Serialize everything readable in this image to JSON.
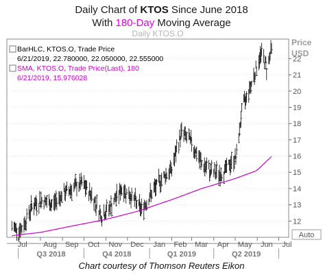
{
  "title": {
    "line1_prefix": "Daily Chart of ",
    "line1_ticker": "KTOS",
    "line1_suffix": " Since June 2018",
    "line2_prefix": "With ",
    "line2_highlight": "180-Day",
    "line2_suffix": " Moving Average"
  },
  "watermark": "Daily KTOS.O",
  "legend": [
    {
      "line1": "BarHLC, KTOS.O, Trade Price",
      "line2": "6/21/2019, 22.780000, 22.050000, 22.555000",
      "color": "#000000"
    },
    {
      "line1": "SMA, KTOS.O, Trade Price(Last),  180",
      "line2": "6/21/2019, 15.976028",
      "color": "#cc00cc"
    }
  ],
  "axis_title": {
    "line1": "Price",
    "line2": "USD"
  },
  "auto_label": "Auto",
  "credit": "Chart courtesy of Thomson Reuters Eikon",
  "colors": {
    "bars": "#000000",
    "sma": "#cc00cc",
    "accent": "#e800e8",
    "grid": "#cfcfcf",
    "axis_text": "#555555"
  },
  "chart_data": {
    "type": "line",
    "y_ticks": [
      "12",
      "13",
      "14",
      "15",
      "16",
      "17",
      "18",
      "19",
      "20",
      "21",
      "22"
    ],
    "ylim": [
      11.0,
      23.2
    ],
    "month_labels": [
      "Jul",
      "Aug",
      "Sep",
      "Oct",
      "Nov",
      "Dec",
      "Jan",
      "Feb",
      "Mar",
      "Apr",
      "May",
      "Jun",
      "Jul"
    ],
    "quarter_labels": [
      "Q3 2018",
      "Q4 2018",
      "Q1 2019",
      "Q2 2019"
    ],
    "series": [
      {
        "name": "BarHLC, KTOS.O, Trade Price",
        "kind": "price",
        "points": [
          [
            "2018-06-22",
            11.6
          ],
          [
            "2018-07-06",
            11.5
          ],
          [
            "2018-07-20",
            12.9
          ],
          [
            "2018-08-03",
            13.3
          ],
          [
            "2018-08-17",
            13.0
          ],
          [
            "2018-08-31",
            13.6
          ],
          [
            "2018-09-14",
            14.0
          ],
          [
            "2018-09-28",
            14.3
          ],
          [
            "2018-10-12",
            13.6
          ],
          [
            "2018-10-26",
            12.3
          ],
          [
            "2018-11-09",
            13.0
          ],
          [
            "2018-11-23",
            14.0
          ],
          [
            "2018-12-07",
            13.5
          ],
          [
            "2018-12-21",
            12.7
          ],
          [
            "2019-01-04",
            13.7
          ],
          [
            "2019-01-18",
            14.6
          ],
          [
            "2019-02-01",
            15.2
          ],
          [
            "2019-02-15",
            17.5
          ],
          [
            "2019-03-01",
            16.8
          ],
          [
            "2019-03-15",
            15.5
          ],
          [
            "2019-03-29",
            15.0
          ],
          [
            "2019-04-12",
            14.9
          ],
          [
            "2019-04-26",
            15.6
          ],
          [
            "2019-05-03",
            16.0
          ],
          [
            "2019-05-10",
            18.8
          ],
          [
            "2019-05-24",
            20.5
          ],
          [
            "2019-06-07",
            22.4
          ],
          [
            "2019-06-14",
            21.4
          ],
          [
            "2019-06-21",
            22.6
          ]
        ]
      },
      {
        "name": "SMA, KTOS.O, Trade Price(Last),  180",
        "kind": "sma",
        "points": [
          [
            "2018-06-22",
            11.1
          ],
          [
            "2018-08-01",
            11.3
          ],
          [
            "2018-09-15",
            11.7
          ],
          [
            "2018-11-01",
            12.1
          ],
          [
            "2018-12-15",
            12.6
          ],
          [
            "2019-01-31",
            13.3
          ],
          [
            "2019-03-15",
            14.0
          ],
          [
            "2019-04-30",
            14.6
          ],
          [
            "2019-05-31",
            15.1
          ],
          [
            "2019-06-21",
            15.98
          ]
        ]
      }
    ]
  }
}
